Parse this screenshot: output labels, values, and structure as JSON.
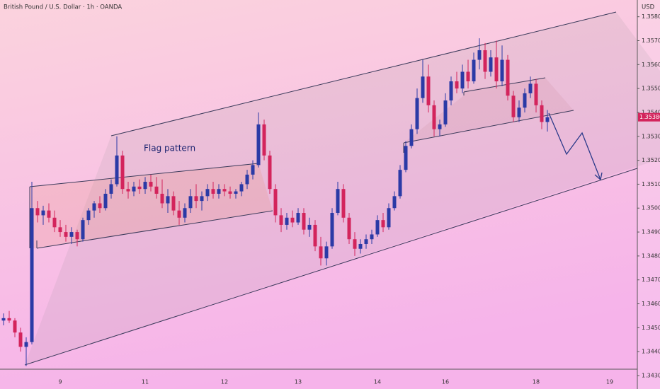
{
  "chart_data": {
    "type": "candlestick",
    "title": "British Pound / U.S. Dollar · 1h · OANDA",
    "y_axis_label": "USD",
    "annotation": "Flag pattern",
    "up_color": "#2b3aa6",
    "down_color": "#d3245c",
    "categories": [
      null,
      null,
      null,
      null,
      null,
      null,
      null,
      null,
      null,
      null,
      "9",
      null,
      null,
      null,
      null,
      null,
      null,
      null,
      null,
      null,
      null,
      null,
      null,
      null,
      null,
      "11",
      null,
      null,
      null,
      null,
      null,
      null,
      null,
      null,
      null,
      null,
      null,
      null,
      null,
      "12",
      null,
      null,
      null,
      null,
      null,
      null,
      null,
      null,
      null,
      null,
      null,
      null,
      "13",
      null,
      null,
      null,
      null,
      null,
      null,
      null,
      null,
      null,
      null,
      null,
      null,
      null,
      "14",
      null,
      null,
      null,
      null,
      null,
      null,
      null,
      null,
      null,
      null,
      null,
      "16",
      null,
      null,
      null,
      null,
      null,
      null,
      null,
      null,
      null,
      null,
      null,
      null,
      null,
      null,
      null,
      "18",
      null,
      null,
      null,
      null,
      null,
      null,
      null,
      null,
      null,
      null,
      null,
      null,
      "19"
    ],
    "open": [
      1.3453,
      1.3454,
      1.3453,
      1.3448,
      1.3442,
      1.3444,
      1.35,
      1.3497,
      1.3499,
      1.3496,
      1.3492,
      1.349,
      1.3488,
      1.349,
      1.3487,
      1.3495,
      1.3499,
      1.3502,
      1.35,
      1.3506,
      1.351,
      1.3522,
      1.3508,
      1.3507,
      1.3509,
      1.3508,
      1.3511,
      1.3509,
      1.3506,
      1.3502,
      1.3505,
      1.3499,
      1.3496,
      1.35,
      1.3505,
      1.3503,
      1.3505,
      1.3508,
      1.3506,
      1.3508,
      1.3507,
      1.3506,
      1.3507,
      1.351,
      1.3514,
      1.3518,
      1.3535,
      1.3522,
      1.3508,
      1.3497,
      1.3493,
      1.3496,
      1.3494,
      1.3498,
      1.3491,
      1.3493,
      1.3484,
      1.3479,
      1.3484,
      1.3498,
      1.3508,
      1.3496,
      1.3487,
      1.3483,
      1.3485,
      1.3487,
      1.3489,
      1.3495,
      1.3492,
      1.35,
      1.3505,
      1.3516,
      1.3526,
      1.3533,
      1.3546,
      1.3555,
      1.3543,
      1.3533,
      1.3535,
      1.3545,
      1.3553,
      1.355,
      1.3557,
      1.3553,
      1.3562,
      1.3566,
      1.3557,
      1.3563,
      1.3553,
      1.3562,
      1.3547,
      1.3538,
      1.3542,
      1.3548,
      1.3552,
      1.3543,
      1.3536,
      null,
      null,
      null,
      null,
      null,
      null,
      null,
      null,
      null,
      null,
      null
    ],
    "high": [
      1.3456,
      1.3457,
      1.3454,
      1.345,
      1.3446,
      1.3511,
      1.3503,
      1.3501,
      1.3502,
      1.3499,
      1.3495,
      1.3493,
      1.3492,
      1.3491,
      1.3496,
      1.35,
      1.3503,
      1.3505,
      1.3508,
      1.3512,
      1.353,
      1.3524,
      1.3511,
      1.3511,
      1.3512,
      1.3513,
      1.3514,
      1.3513,
      1.3512,
      1.3508,
      1.3507,
      1.3503,
      1.3502,
      1.3508,
      1.351,
      1.3507,
      1.351,
      1.3511,
      1.351,
      1.351,
      1.3509,
      1.3508,
      1.3511,
      1.3516,
      1.352,
      1.354,
      1.3537,
      1.3524,
      1.351,
      1.35,
      1.3498,
      1.3499,
      1.35,
      1.35,
      1.3496,
      1.3495,
      1.3488,
      1.3486,
      1.35,
      1.3511,
      1.351,
      1.3498,
      1.349,
      1.3487,
      1.3489,
      1.3491,
      1.3497,
      1.3498,
      1.3502,
      1.3507,
      1.3518,
      1.3528,
      1.3535,
      1.355,
      1.3562,
      1.356,
      1.3545,
      1.3537,
      1.3548,
      1.3555,
      1.3557,
      1.356,
      1.3562,
      1.3565,
      1.3571,
      1.3569,
      1.3566,
      1.357,
      1.3568,
      1.3564,
      1.3549,
      1.3545,
      1.355,
      1.3555,
      1.3554,
      1.3545,
      1.3541,
      null,
      null,
      null,
      null,
      null,
      null,
      null,
      null,
      null,
      null,
      null
    ],
    "low": [
      1.3451,
      1.3452,
      1.3446,
      1.344,
      1.3434,
      1.3443,
      1.3494,
      1.3493,
      1.3494,
      1.349,
      1.3488,
      1.3486,
      1.3485,
      1.3484,
      1.3486,
      1.3493,
      1.3496,
      1.3498,
      1.3499,
      1.3504,
      1.3509,
      1.3506,
      1.3504,
      1.3505,
      1.3506,
      1.3506,
      1.3507,
      1.3504,
      1.35,
      1.3498,
      1.3497,
      1.3493,
      1.3494,
      1.3498,
      1.35,
      1.3499,
      1.3503,
      1.3504,
      1.3504,
      1.3505,
      1.3504,
      1.3504,
      1.3505,
      1.3508,
      1.3512,
      1.3517,
      1.352,
      1.3506,
      1.3494,
      1.349,
      1.3491,
      1.3492,
      1.3493,
      1.3489,
      1.3488,
      1.3482,
      1.3476,
      1.3476,
      1.3483,
      1.3497,
      1.3494,
      1.3485,
      1.348,
      1.3481,
      1.3483,
      1.3485,
      1.3488,
      1.349,
      1.3491,
      1.3499,
      1.3504,
      1.3515,
      1.3525,
      1.3531,
      1.3544,
      1.354,
      1.353,
      1.353,
      1.3534,
      1.3543,
      1.3548,
      1.3548,
      1.355,
      1.3552,
      1.3558,
      1.3554,
      1.3555,
      1.355,
      1.3551,
      1.3545,
      1.3536,
      1.3536,
      1.354,
      1.3546,
      1.354,
      1.3533,
      1.3532,
      null,
      null,
      null,
      null,
      null,
      null,
      null,
      null,
      null,
      null,
      null
    ],
    "close": [
      1.3454,
      1.3453,
      1.3448,
      1.3442,
      1.3444,
      1.35,
      1.3497,
      1.3499,
      1.3496,
      1.3492,
      1.349,
      1.3488,
      1.349,
      1.3487,
      1.3495,
      1.3499,
      1.3502,
      1.35,
      1.3506,
      1.351,
      1.3522,
      1.3508,
      1.3507,
      1.3509,
      1.3508,
      1.3511,
      1.3509,
      1.3506,
      1.3502,
      1.3505,
      1.3499,
      1.3496,
      1.35,
      1.3505,
      1.3503,
      1.3505,
      1.3508,
      1.3506,
      1.3508,
      1.3507,
      1.3506,
      1.3507,
      1.351,
      1.3514,
      1.3518,
      1.3535,
      1.3522,
      1.3508,
      1.3497,
      1.3493,
      1.3496,
      1.3494,
      1.3498,
      1.3491,
      1.3493,
      1.3484,
      1.3479,
      1.3484,
      1.3498,
      1.3508,
      1.3496,
      1.3487,
      1.3483,
      1.3485,
      1.3487,
      1.3489,
      1.3495,
      1.3492,
      1.35,
      1.3505,
      1.3516,
      1.3526,
      1.3533,
      1.3546,
      1.3555,
      1.3543,
      1.3533,
      1.3535,
      1.3545,
      1.3553,
      1.355,
      1.3557,
      1.3553,
      1.3562,
      1.3566,
      1.3557,
      1.3563,
      1.3553,
      1.3562,
      1.3547,
      1.3538,
      1.3542,
      1.3548,
      1.3552,
      1.3543,
      1.3536,
      1.3538,
      null,
      null,
      null,
      null,
      null,
      null,
      null,
      null,
      null,
      null,
      null
    ],
    "last_price": {
      "value": 1.3538,
      "label": "1.35380"
    },
    "ylim": [
      1.343,
      1.3587
    ],
    "yticks": [
      {
        "value": 1.343,
        "label": "1.34300"
      },
      {
        "value": 1.344,
        "label": "1.34400"
      },
      {
        "value": 1.345,
        "label": "1.34500"
      },
      {
        "value": 1.346,
        "label": "1.34600"
      },
      {
        "value": 1.347,
        "label": "1.34700"
      },
      {
        "value": 1.348,
        "label": "1.34800"
      },
      {
        "value": 1.349,
        "label": "1.34900"
      },
      {
        "value": 1.35,
        "label": "1.35000"
      },
      {
        "value": 1.351,
        "label": "1.35100"
      },
      {
        "value": 1.352,
        "label": "1.35200"
      },
      {
        "value": 1.353,
        "label": "1.35300"
      },
      {
        "value": 1.354,
        "label": "1.35400"
      },
      {
        "value": 1.355,
        "label": "1.35500"
      },
      {
        "value": 1.356,
        "label": "1.35600"
      },
      {
        "value": 1.357,
        "label": "1.35700"
      },
      {
        "value": 1.358,
        "label": "1.35800"
      }
    ],
    "grid": false
  }
}
